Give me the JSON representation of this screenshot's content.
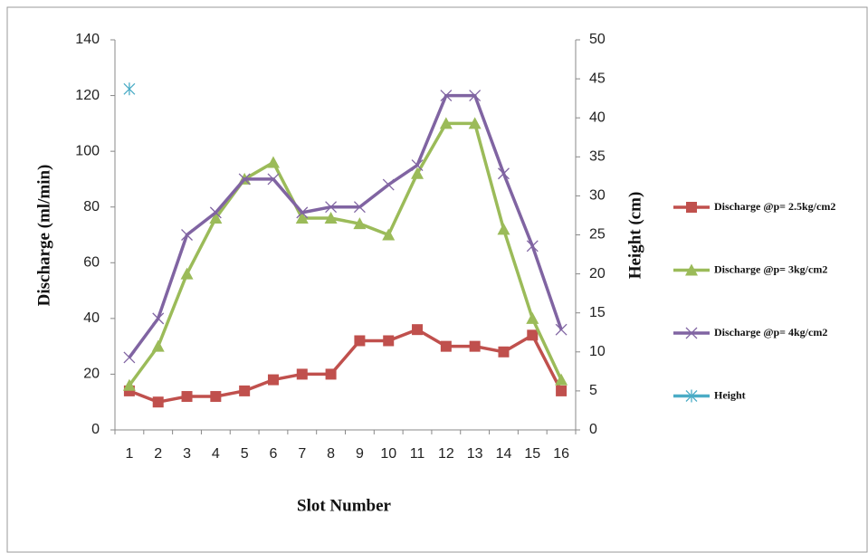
{
  "chart_data": {
    "type": "line",
    "categories": [
      "1",
      "2",
      "3",
      "4",
      "5",
      "6",
      "7",
      "8",
      "9",
      "10",
      "11",
      "12",
      "13",
      "14",
      "15",
      "16"
    ],
    "series": [
      {
        "name": "Discharge @p= 2.5kg/cm2",
        "color": "#c0504d",
        "marker": "square",
        "values": [
          14,
          10,
          12,
          12,
          14,
          18,
          20,
          20,
          32,
          32,
          36,
          30,
          30,
          28,
          34,
          14
        ]
      },
      {
        "name": "Discharge @p= 3kg/cm2",
        "color": "#9bbb59",
        "marker": "triangle",
        "values": [
          16,
          30,
          56,
          76,
          90,
          96,
          76,
          76,
          74,
          70,
          92,
          110,
          110,
          72,
          40,
          18
        ]
      },
      {
        "name": "Discharge @p= 4kg/cm2",
        "color": "#8064a2",
        "marker": "x",
        "values": [
          26,
          40,
          70,
          78,
          90,
          90,
          78,
          80,
          80,
          88,
          95,
          120,
          120,
          92,
          66,
          36
        ]
      },
      {
        "name": "Height",
        "color": "#4bacc6",
        "marker": "star",
        "axis": "y2",
        "values": [
          43.7,
          null,
          null,
          null,
          null,
          null,
          null,
          null,
          null,
          null,
          null,
          null,
          null,
          null,
          null,
          null
        ]
      }
    ],
    "xlabel": "Slot Number",
    "ylabel": "Discharge (ml/min)",
    "y2label": "Height (cm)",
    "ylim": [
      0,
      140
    ],
    "yticks": [
      0,
      20,
      40,
      60,
      80,
      100,
      120,
      140
    ],
    "y2lim": [
      0,
      50
    ],
    "y2ticks": [
      0,
      5,
      10,
      15,
      20,
      25,
      30,
      35,
      40,
      45,
      50
    ],
    "legend": "right"
  }
}
